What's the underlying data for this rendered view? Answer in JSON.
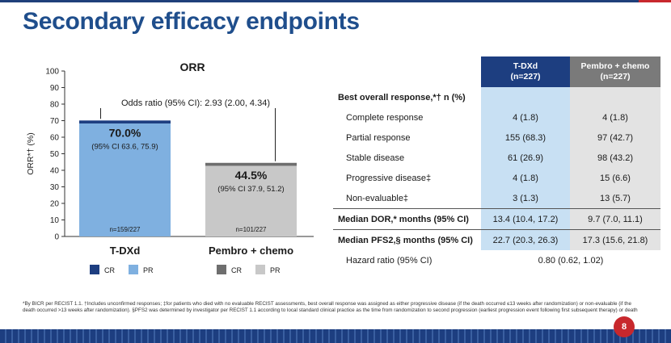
{
  "slide": {
    "title": "Secondary efficacy endpoints",
    "page_number": "8",
    "footnote": "*By BICR per RECIST 1.1. †Includes unconfirmed responses; ‡for patients who died with no evaluable RECIST assessments, best overall response was assigned as either progressive disease (if the death occurred ≤13 weeks after randomization) or non-evaluable (if the death occurred >13 weeks after randomization). §PFS2 was determined by investigator per RECIST 1.1 according to local standard clinical practice as the time from randomization to second progression (earliest progression event following first subsequent therapy) or death"
  },
  "colors": {
    "title_blue": "#1f4e8c",
    "tdxd_cr": "#1d3e80",
    "tdxd_pr": "#7fb0e0",
    "pembro_cr": "#6e6e6e",
    "pembro_pr": "#c8c8c8",
    "accent_red": "#c8282d"
  },
  "chart_data": {
    "type": "bar",
    "title": "ORR",
    "ylabel": "ORR*† (%)",
    "xlabel": "",
    "ylim": [
      0,
      100
    ],
    "yticks": [
      0,
      10,
      20,
      30,
      40,
      50,
      60,
      70,
      80,
      90,
      100
    ],
    "grid": false,
    "categories": [
      "T-DXd",
      "Pembro + chemo"
    ],
    "bars": [
      {
        "category": "T-DXd",
        "cr": 1.8,
        "pr": 68.3,
        "total_label": "70.0%",
        "ci_label": "(95% CI 63.6, 75.9)",
        "n_label": "n=159/227"
      },
      {
        "category": "Pembro + chemo",
        "cr": 1.8,
        "pr": 42.7,
        "total_label": "44.5%",
        "ci_label": "(95% CI 37.9, 51.2)",
        "n_label": "n=101/227"
      }
    ],
    "annotation": "Odds ratio (95% CI): 2.93 (2.00, 4.34)",
    "legends": [
      {
        "group": "T-DXd",
        "items": [
          {
            "name": "CR",
            "color": "#1d3e80"
          },
          {
            "name": "PR",
            "color": "#7fb0e0"
          }
        ]
      },
      {
        "group": "Pembro + chemo",
        "items": [
          {
            "name": "CR",
            "color": "#6e6e6e"
          },
          {
            "name": "PR",
            "color": "#c8c8c8"
          }
        ]
      }
    ]
  },
  "table": {
    "col1_header": [
      "T-DXd",
      "(n=227)"
    ],
    "col2_header": [
      "Pembro + chemo",
      "(n=227)"
    ],
    "section_title": "Best overall response,*† n (%)",
    "rows": [
      {
        "label": "Complete response",
        "t": "4 (1.8)",
        "p": "4 (1.8)"
      },
      {
        "label": "Partial response",
        "t": "155 (68.3)",
        "p": "97 (42.7)"
      },
      {
        "label": "Stable disease",
        "t": "61 (26.9)",
        "p": "98 (43.2)"
      },
      {
        "label": "Progressive disease‡",
        "t": "4 (1.8)",
        "p": "15 (6.6)"
      },
      {
        "label": "Non-evaluable‡",
        "t": "3 (1.3)",
        "p": "13 (5.7)"
      }
    ],
    "dor": {
      "label": "Median DOR,* months (95% CI)",
      "t": "13.4 (10.4, 17.2)",
      "p": "9.7 (7.0, 11.1)"
    },
    "pfs2": {
      "label": "Median PFS2,§ months (95% CI)",
      "t": "22.7 (20.3, 26.3)",
      "p": "17.3 (15.6, 21.8)"
    },
    "hr": {
      "label": "Hazard ratio (95% CI)",
      "value": "0.80 (0.62, 1.02)"
    }
  }
}
